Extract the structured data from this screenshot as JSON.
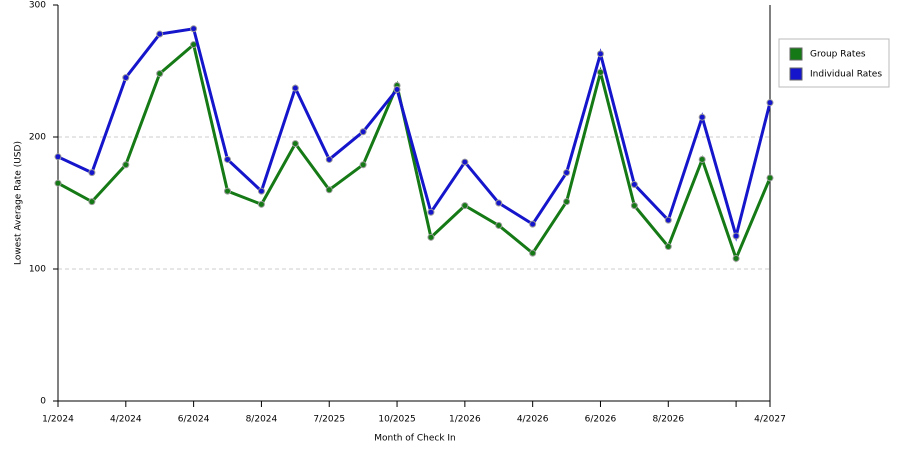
{
  "chart_data": {
    "type": "line",
    "x_label": "Month of Check In",
    "y_label": "Lowest Average Rate (USD)",
    "categories": [
      "1/2024",
      null,
      "4/2024",
      null,
      "6/2024",
      null,
      "8/2024",
      null,
      "7/2025",
      null,
      "10/2025",
      null,
      "1/2026",
      null,
      "4/2026",
      null,
      "6/2026",
      null,
      "8/2026",
      null,
      null,
      "4/2027"
    ],
    "series": [
      {
        "name": "Group Rates",
        "color": "#157a15",
        "values": [
          165,
          151,
          179,
          248,
          270,
          159,
          149,
          195,
          160,
          179,
          239,
          124,
          148,
          133,
          112,
          151,
          249,
          148,
          117,
          183,
          108,
          169
        ]
      },
      {
        "name": "Individual Rates",
        "color": "#1515cc",
        "values": [
          185,
          173,
          245,
          278,
          282,
          183,
          159,
          237,
          183,
          204,
          236,
          143,
          181,
          150,
          134,
          173,
          263,
          164,
          137,
          215,
          125,
          226
        ]
      }
    ],
    "ylim": [
      0,
      300
    ],
    "yticks": [
      0,
      100,
      200,
      300
    ],
    "grid": true,
    "legend": "right"
  }
}
